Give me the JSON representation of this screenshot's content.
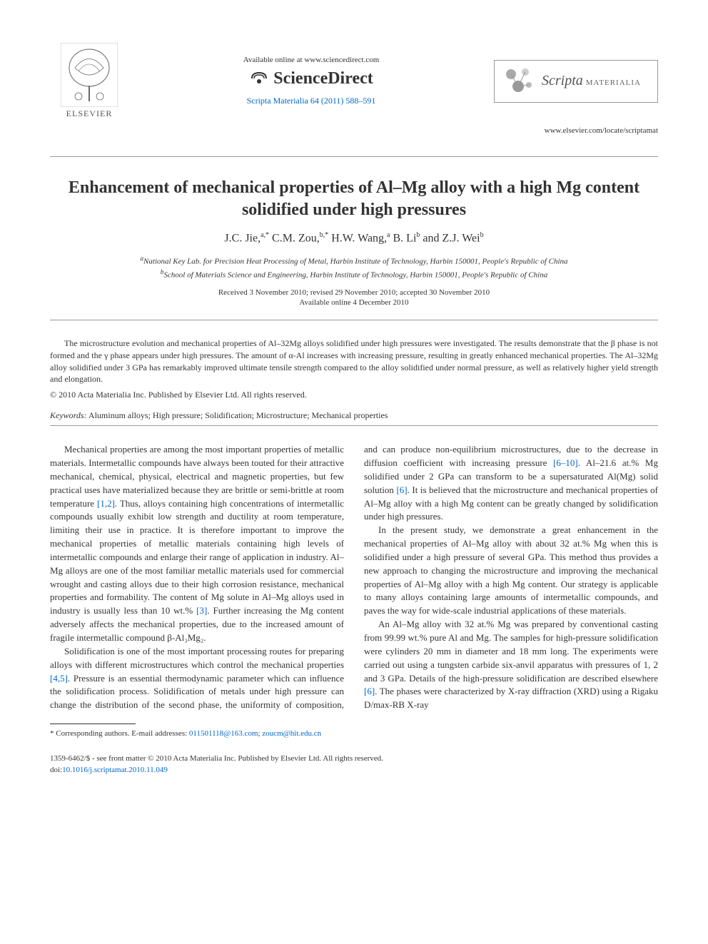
{
  "header": {
    "elsevier_label": "ELSEVIER",
    "available_online": "Available online at www.sciencedirect.com",
    "sciencedirect": "ScienceDirect",
    "citation": "Scripta Materialia 64 (2011) 588–591",
    "journal_name": "Scripta",
    "journal_suffix": "MATERIALIA",
    "locate_url": "www.elsevier.com/locate/scriptamat"
  },
  "article": {
    "title": "Enhancement of mechanical properties of Al–Mg alloy with a high Mg content solidified under high pressures",
    "authors_html": "J.C. Jie,<sup>a,*</sup> C.M. Zou,<sup>b,*</sup> H.W. Wang,<sup>a</sup> B. Li<sup>b</sup> and Z.J. Wei<sup>b</sup>",
    "affiliation_a": "aNational Key Lab. for Precision Heat Processing of Metal, Harbin Institute of Technology, Harbin 150001, People's Republic of China",
    "affiliation_b": "bSchool of Materials Science and Engineering, Harbin Institute of Technology, Harbin 150001, People's Republic of China",
    "received": "Received 3 November 2010; revised 29 November 2010; accepted 30 November 2010",
    "available": "Available online 4 December 2010"
  },
  "abstract": {
    "text": "The microstructure evolution and mechanical properties of Al–32Mg alloys solidified under high pressures were investigated. The results demonstrate that the β phase is not formed and the γ phase appears under high pressures. The amount of α-Al increases with increasing pressure, resulting in greatly enhanced mechanical properties. The Al–32Mg alloy solidified under 3 GPa has remarkably improved ultimate tensile strength compared to the alloy solidified under normal pressure, as well as relatively higher yield strength and elongation.",
    "copyright": "© 2010 Acta Materialia Inc. Published by Elsevier Ltd. All rights reserved."
  },
  "keywords": {
    "label": "Keywords:",
    "text": " Aluminum alloys; High pressure; Solidification; Microstructure; Mechanical properties"
  },
  "body": {
    "p1a": "Mechanical properties are among the most important properties of metallic materials. Intermetallic compounds have always been touted for their attractive mechanical, chemical, physical, electrical and magnetic properties, but few practical uses have materialized because they are brittle or semi-brittle at room temperature ",
    "ref1": "[1,2]",
    "p1b": ". Thus, alloys containing high concentrations of intermetallic compounds usually exhibit low strength and ductility at room temperature, limiting their use in practice. It is therefore important to improve the mechanical properties of metallic materials containing high levels of intermetallic compounds and enlarge their range of application in industry. Al–Mg alloys are one of the most familiar metallic materials used for commercial wrought and casting alloys due to their high corrosion resistance, mechanical properties and formability. The content of Mg solute in Al–Mg alloys used in industry is usually less than 10 wt.% ",
    "ref2": "[3]",
    "p1c": ". Further increasing the Mg content adversely affects the mechanical properties, due to the increased amount of fragile intermetallic compound β-Al₃Mg₂.",
    "p2a": "Solidification is one of the most important processing routes for preparing alloys with different microstructures which control the mechanical properties ",
    "ref3": "[4,5]",
    "p2b": ". Pressure is an essential thermodynamic parameter which can influence the solidification process. Solidification of metals under high pressure can change the distribution of the second phase, the uniformity of composition, and can produce non-equilibrium microstructures, due to the decrease in diffusion coefficient with increasing pressure ",
    "ref4": "[6–10]",
    "p2c": ". Al–21.6 at.% Mg solidified under 2 GPa can transform to be a supersaturated Al(Mg) solid solution ",
    "ref5": "[6]",
    "p2d": ". It is believed that the microstructure and mechanical properties of Al–Mg alloy with a high Mg content can be greatly changed by solidification under high pressures.",
    "p3": "In the present study, we demonstrate a great enhancement in the mechanical properties of Al–Mg alloy with about 32 at.% Mg when this is solidified under a high pressure of several GPa. This method thus provides a new approach to changing the microstructure and improving the mechanical properties of Al–Mg alloy with a high Mg content. Our strategy is applicable to many alloys containing large amounts of intermetallic compounds, and paves the way for wide-scale industrial applications of these materials.",
    "p4a": "An Al–Mg alloy with 32 at.% Mg was prepared by conventional casting from 99.99 wt.% pure Al and Mg. The samples for high-pressure solidification were cylinders 20 mm in diameter and 18 mm long. The experiments were carried out using a tungsten carbide six-anvil apparatus with pressures of 1, 2 and 3 GPa. Details of the high-pressure solidification are described elsewhere ",
    "ref6": "[6]",
    "p4b": ". The phases were characterized by X-ray diffraction (XRD) using a Rigaku D/max-RB X-ray"
  },
  "footnote": {
    "label": "* Corresponding authors. E-mail addresses: ",
    "email1": "011501118@163.com",
    "sep": "; ",
    "email2": "zoucm@hit.edu.cn"
  },
  "footer": {
    "line1": "1359-6462/$ - see front matter © 2010 Acta Materialia Inc. Published by Elsevier Ltd. All rights reserved.",
    "doi_label": "doi:",
    "doi": "10.1016/j.scriptamat.2010.11.049"
  },
  "colors": {
    "link": "#0066cc",
    "text": "#333333",
    "rule": "#999999"
  }
}
